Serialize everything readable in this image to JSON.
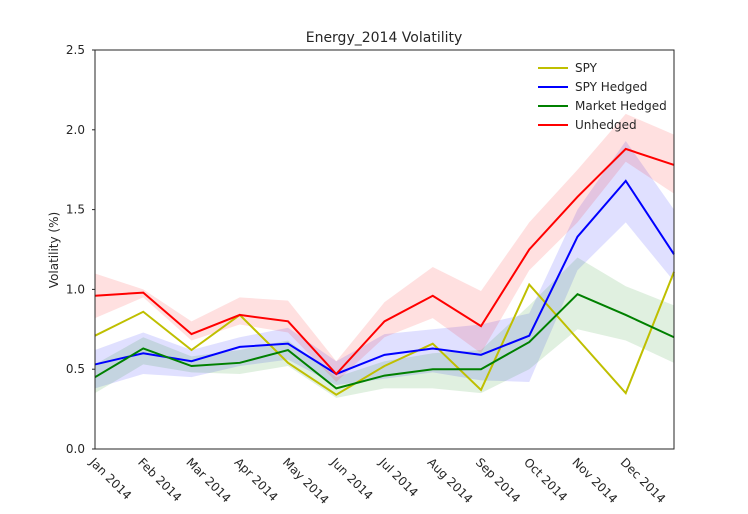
{
  "chart_data": {
    "type": "line",
    "title": "Energy_2014 Volatility",
    "y_label": "Volatility (%)",
    "categories": [
      "Jan 2014",
      "Feb 2014",
      "Mar 2014",
      "Apr 2014",
      "May 2014",
      "Jun 2014",
      "Jul 2014",
      "Aug 2014",
      "Sep 2014",
      "Oct 2014",
      "Nov 2014",
      "Dec 2014",
      null
    ],
    "ylim": [
      0,
      2.5
    ],
    "yticks": [
      {
        "value": 0,
        "label": "0.0"
      },
      0.5,
      {
        "value": 1,
        "label": "1.0"
      },
      1.5,
      {
        "value": 2,
        "label": "2.0"
      },
      2.5
    ],
    "legend": "upper right",
    "series": [
      {
        "name": "SPY",
        "color": "#bfbf00",
        "values": [
          0.71,
          0.86,
          0.62,
          0.84,
          0.54,
          0.34,
          0.52,
          0.66,
          0.37,
          1.03,
          0.69,
          0.35,
          1.11
        ]
      },
      {
        "name": "SPY Hedged",
        "color": "#0000ff",
        "values": [
          0.53,
          0.6,
          0.55,
          0.64,
          0.66,
          0.47,
          0.59,
          0.63,
          0.59,
          0.71,
          1.33,
          1.68,
          1.22
        ],
        "band_high": [
          0.62,
          0.73,
          0.62,
          0.7,
          0.76,
          0.55,
          0.72,
          0.75,
          0.78,
          0.85,
          1.5,
          1.93,
          1.5
        ],
        "band_low": [
          0.38,
          0.47,
          0.45,
          0.52,
          0.56,
          0.4,
          0.44,
          0.48,
          0.43,
          0.42,
          1.12,
          1.42,
          1.05
        ]
      },
      {
        "name": "Market Hedged",
        "color": "#008000",
        "values": [
          0.45,
          0.63,
          0.52,
          0.54,
          0.62,
          0.38,
          0.46,
          0.5,
          0.5,
          0.67,
          0.97,
          0.84,
          0.7
        ],
        "band_high": [
          0.53,
          0.7,
          0.58,
          0.62,
          0.68,
          0.45,
          0.55,
          0.6,
          0.62,
          0.9,
          1.2,
          1.02,
          0.9
        ],
        "band_low": [
          0.35,
          0.53,
          0.48,
          0.47,
          0.52,
          0.32,
          0.38,
          0.38,
          0.35,
          0.5,
          0.75,
          0.68,
          0.54
        ]
      },
      {
        "name": "Unhedged",
        "color": "#ff0000",
        "values": [
          0.96,
          0.98,
          0.72,
          0.84,
          0.8,
          0.47,
          0.8,
          0.96,
          0.77,
          1.25,
          1.58,
          1.88,
          1.78
        ],
        "band_high": [
          1.1,
          1.0,
          0.8,
          0.95,
          0.93,
          0.55,
          0.92,
          1.14,
          0.99,
          1.42,
          1.75,
          2.1,
          1.97
        ],
        "band_low": [
          0.82,
          0.95,
          0.68,
          0.78,
          0.73,
          0.42,
          0.7,
          0.82,
          0.6,
          1.12,
          1.42,
          1.8,
          1.6
        ]
      }
    ]
  }
}
